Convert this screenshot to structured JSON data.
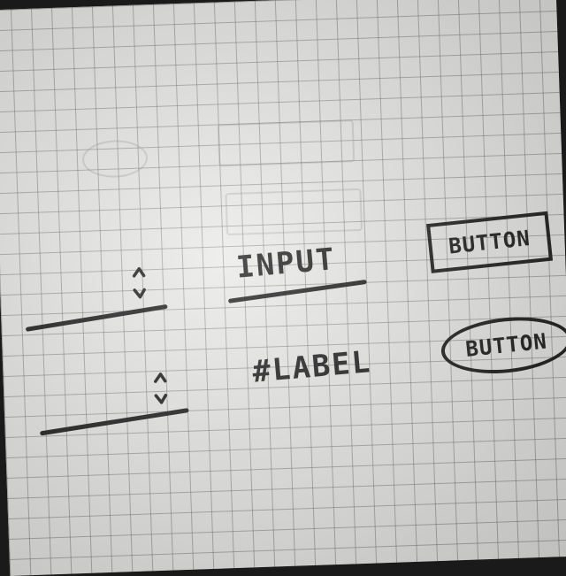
{
  "sketch": {
    "input": {
      "label": "INPUT"
    },
    "label": {
      "text": "#LABEL"
    },
    "buttons": [
      {
        "label": "BUTTON",
        "shape": "rectangle"
      },
      {
        "label": "BUTTON",
        "shape": "oval"
      }
    ],
    "steppers": [
      {
        "icon": "up-down-arrows-icon"
      },
      {
        "icon": "up-down-arrows-icon"
      }
    ]
  },
  "colors": {
    "paper": "#e9e9e7",
    "grid": "#5a5a5a",
    "ink": "#151515"
  }
}
